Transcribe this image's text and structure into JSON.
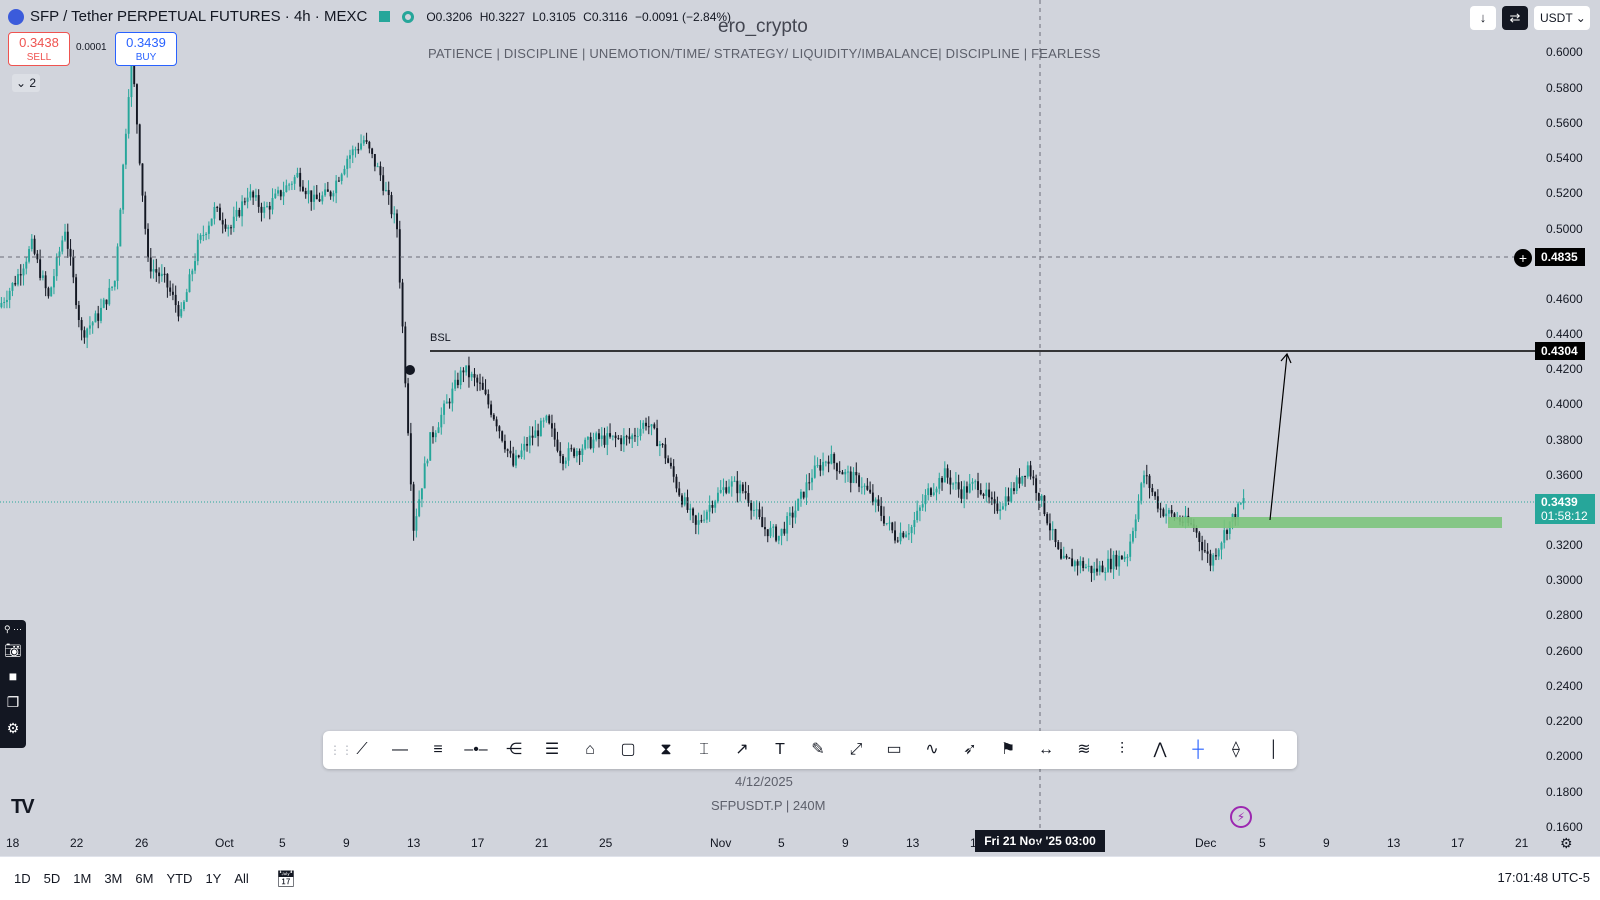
{
  "header": {
    "symbol_title": "SFP / Tether PERPETUAL FUTURES · 4h · MEXC",
    "ohlc": {
      "open": "O0.3206",
      "high": "H0.3227",
      "low": "L0.3105",
      "close": "C0.3116",
      "change": "−0.0091 (−2.84%)"
    },
    "sell_price": "0.3438",
    "sell_label": "SELL",
    "buy_price": "0.3439",
    "buy_label": "BUY",
    "spread": "0.0001",
    "collapse_count": "2"
  },
  "watermark": {
    "name": "ero_crypto",
    "tagline": "PATIENCE   |   DISCIPLINE   |   UNEMOTION/TIME/ STRATEGY/ LIQUIDITY/IMBALANCE|   DISCIPLINE   |   FEARLESS",
    "date": "4/12/2025",
    "symbol": "SFPUSDT.P  |  240M"
  },
  "top_right": {
    "download_icon": "↓",
    "currency": "USDT"
  },
  "annotations": {
    "bsl_label": "BSL"
  },
  "price_axis": {
    "ticks": [
      "0.6000",
      "0.5800",
      "0.5600",
      "0.5400",
      "0.5200",
      "0.5000",
      "0.4600",
      "0.4400",
      "0.4200",
      "0.4000",
      "0.3800",
      "0.3600",
      "0.3200",
      "0.3000",
      "0.2800",
      "0.2600",
      "0.2400",
      "0.2200",
      "0.2000",
      "0.1800",
      "0.1600"
    ],
    "crosshair_price": "0.4835",
    "bsl_price": "0.4304",
    "last_price": "0.3439",
    "countdown": "01:58:12"
  },
  "time_axis": {
    "ticks": [
      "18",
      "22",
      "26",
      "Oct",
      "5",
      "9",
      "13",
      "17",
      "21",
      "25",
      "Nov",
      "5",
      "9",
      "13",
      "1",
      "5",
      "Dec",
      "5",
      "9",
      "13",
      "17",
      "21"
    ],
    "crosshair_time": "Fri 21 Nov '25   03:00"
  },
  "toolbar": {
    "tools": [
      "trend-line",
      "horizontal-ray",
      "parallel-channel",
      "horizontal-line",
      "pitchfork",
      "fib-retracement",
      "callout",
      "rectangle",
      "long-position",
      "vertical-range",
      "arrow",
      "text",
      "brush",
      "extended-line",
      "comment",
      "curve",
      "arrow-marker",
      "flag",
      "date-range",
      "gann-fan",
      "pattern",
      "polyline",
      "crosshair",
      "path",
      "vertical-line"
    ]
  },
  "bottom_bar": {
    "ranges": [
      "1D",
      "5D",
      "1M",
      "3M",
      "6M",
      "YTD",
      "1Y",
      "All"
    ],
    "clock": "17:01:48 UTC-5"
  },
  "colors": {
    "up": "#26a69a",
    "down": "#131722",
    "zone": "#7cc47c",
    "background": "#d1d4dc"
  },
  "chart_data": {
    "type": "candlestick",
    "title": "SFP / Tether PERPETUAL FUTURES · 4h · MEXC",
    "ylim": [
      0.15,
      0.61
    ],
    "path_prices": [
      0.455,
      0.47,
      0.49,
      0.46,
      0.5,
      0.44,
      0.45,
      0.47,
      0.6,
      0.48,
      0.47,
      0.45,
      0.49,
      0.51,
      0.5,
      0.52,
      0.51,
      0.52,
      0.53,
      0.515,
      0.52,
      0.54,
      0.55,
      0.53,
      0.5,
      0.33,
      0.38,
      0.4,
      0.42,
      0.41,
      0.39,
      0.365,
      0.38,
      0.39,
      0.37,
      0.375,
      0.38,
      0.38,
      0.38,
      0.39,
      0.375,
      0.35,
      0.33,
      0.345,
      0.355,
      0.35,
      0.33,
      0.325,
      0.34,
      0.36,
      0.37,
      0.36,
      0.355,
      0.34,
      0.325,
      0.33,
      0.35,
      0.36,
      0.35,
      0.355,
      0.34,
      0.35,
      0.365,
      0.34,
      0.31,
      0.31,
      0.305,
      0.31,
      0.315,
      0.36,
      0.34,
      0.335,
      0.33,
      0.31,
      0.33,
      0.345
    ]
  }
}
